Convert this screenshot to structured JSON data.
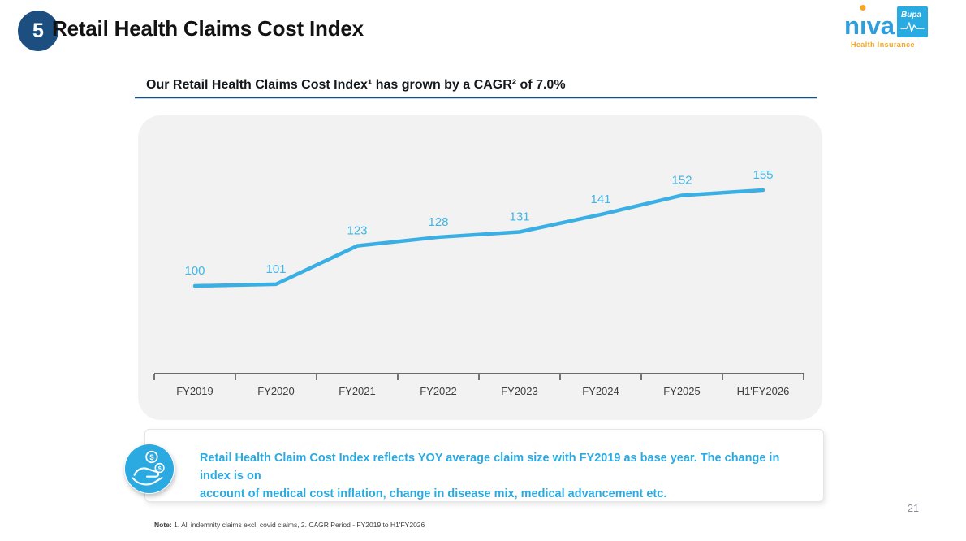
{
  "header": {
    "slide_number": "5",
    "title": "Retail Health Claims Cost Index"
  },
  "logo": {
    "brand": "niva",
    "brand_parts": [
      "n",
      "ı",
      "va"
    ],
    "sub_brand": "Bupa",
    "tagline": "Health Insurance",
    "colors": {
      "blue": "#2E9FDC",
      "square_blue": "#29ABE2",
      "orange": "#F5A623"
    }
  },
  "subtitle": "Our Retail Health Claims Cost Index¹ has grown by a CAGR² of 7.0%",
  "chart_data": {
    "type": "line",
    "title": "Retail Health Claims Cost Index",
    "categories": [
      "FY2019",
      "FY2020",
      "FY2021",
      "FY2022",
      "FY2023",
      "FY2024",
      "FY2025",
      "H1'FY2026"
    ],
    "values": [
      100,
      101,
      123,
      128,
      131,
      141,
      152,
      155
    ],
    "xlabel": "",
    "ylabel": "",
    "ylim": [
      95,
      180
    ],
    "grid": false,
    "legend": false,
    "data_labels": true,
    "line_color": "#3AAFE4",
    "label_color": "#41B6E6",
    "axis_color": "#3f3f3f"
  },
  "note": {
    "icon": "hand-coin-icon",
    "lines": [
      "Retail Health Claim Cost Index reflects YOY average claim size with FY2019 as base year. The change in index is on",
      "account of medical cost inflation, change in disease mix, medical advancement etc."
    ]
  },
  "footnote": {
    "prefix": "Note:",
    "text": " 1. All indemnity claims excl. covid claims, 2. CAGR Period - FY2019 to H1'FY2026"
  },
  "page_number": "21"
}
